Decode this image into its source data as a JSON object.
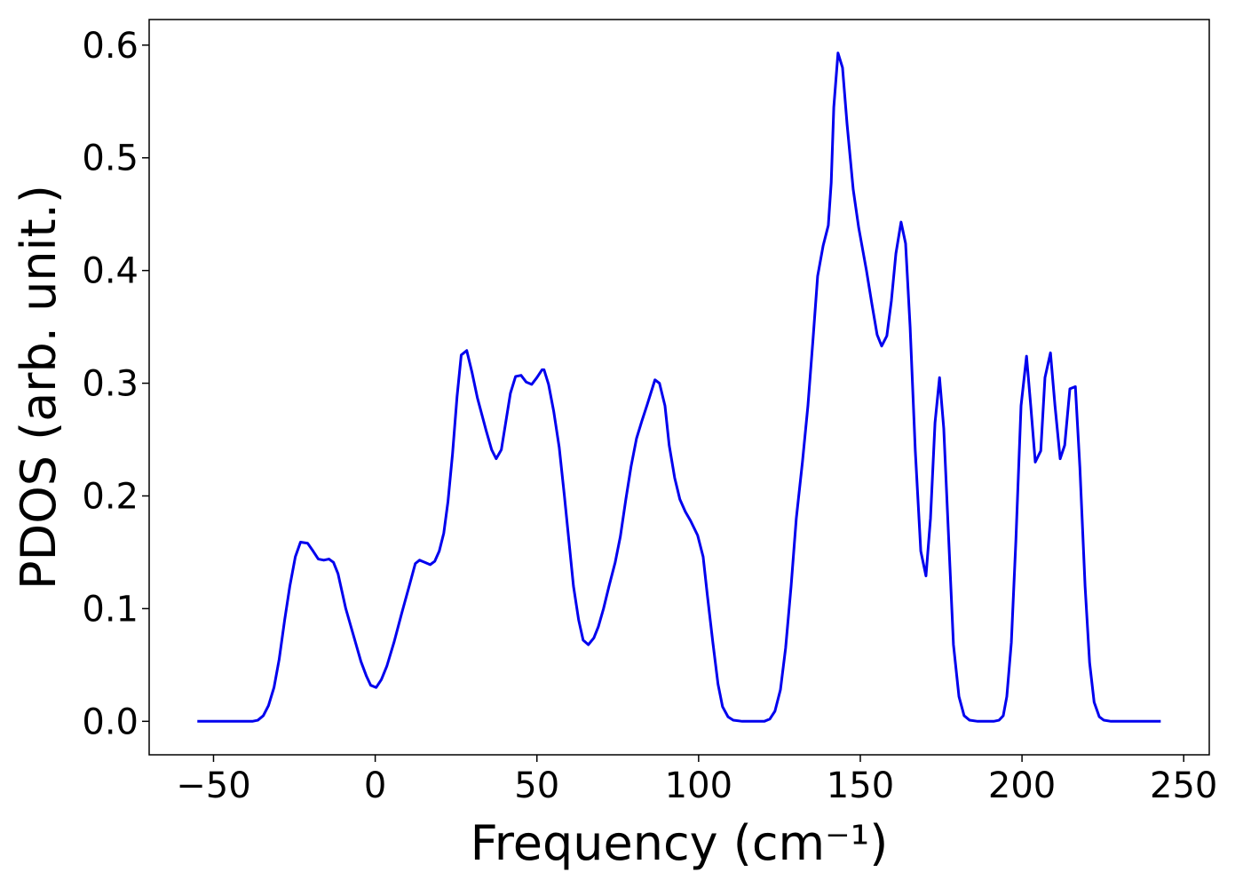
{
  "chart_data": {
    "type": "line",
    "xlabel": "Frequency (cm⁻¹)",
    "ylabel": "PDOS (arb. unit.)",
    "x": [
      -55,
      -38,
      -36.3,
      -34.6,
      -33,
      -31.3,
      -29.7,
      -28,
      -26.4,
      -24.7,
      -23.1,
      -20.9,
      -19.2,
      -17.6,
      -15.9,
      -14.3,
      -12.9,
      -11.5,
      -9.1,
      -6.6,
      -4.4,
      -2.7,
      -1.4,
      0.3,
      1.9,
      3.6,
      5.8,
      8.2,
      10.7,
      12.4,
      13.7,
      15.4,
      17,
      18.4,
      19.8,
      21.2,
      22.5,
      23.9,
      25.3,
      26.6,
      28.3,
      29.9,
      31.6,
      34.3,
      36,
      37.4,
      39,
      40.4,
      41.8,
      43.4,
      45.1,
      46.7,
      48.4,
      50,
      51.6,
      52.2,
      53.6,
      55.2,
      56.9,
      58.5,
      59.9,
      61.3,
      62.9,
      64.3,
      65.9,
      67.6,
      69,
      70.6,
      72.3,
      74.2,
      75.8,
      77.5,
      79.1,
      80.8,
      82.4,
      84.1,
      86.5,
      87.9,
      89.6,
      90.9,
      92.6,
      94.2,
      95.9,
      97.5,
      99.7,
      101.4,
      102.7,
      104.4,
      106,
      107.4,
      109.1,
      110.7,
      113.5,
      120.3,
      122,
      123.6,
      125.3,
      126.9,
      128.6,
      130.2,
      132.1,
      133.8,
      135.4,
      136.8,
      138.5,
      140.1,
      141,
      141.8,
      143.1,
      144.5,
      145.9,
      147.8,
      149.5,
      151.9,
      153.6,
      155.2,
      156.6,
      158.2,
      159.6,
      161,
      162.6,
      164,
      165.4,
      167,
      168.7,
      170.3,
      171.7,
      173.1,
      174.5,
      175.8,
      177.2,
      178.8,
      180.5,
      182.1,
      183.8,
      186.3,
      191.2,
      192.9,
      194.2,
      195.3,
      196.7,
      198.1,
      199.7,
      201.4,
      202.7,
      204.1,
      205.8,
      207.1,
      208.8,
      210.2,
      211.8,
      213.2,
      214.8,
      216.5,
      217.9,
      219.5,
      220.9,
      222.3,
      223.9,
      225.3,
      227.5,
      242.9
    ],
    "series": [
      {
        "color": "#0000ee",
        "values": [
          0,
          0,
          0.001,
          0.005,
          0.014,
          0.03,
          0.055,
          0.09,
          0.12,
          0.146,
          0.159,
          0.158,
          0.151,
          0.144,
          0.143,
          0.144,
          0.141,
          0.131,
          0.1,
          0.075,
          0.053,
          0.04,
          0.032,
          0.03,
          0.037,
          0.049,
          0.07,
          0.096,
          0.122,
          0.14,
          0.143,
          0.141,
          0.139,
          0.142,
          0.151,
          0.167,
          0.195,
          0.237,
          0.288,
          0.325,
          0.329,
          0.31,
          0.287,
          0.258,
          0.241,
          0.233,
          0.241,
          0.266,
          0.291,
          0.306,
          0.307,
          0.301,
          0.299,
          0.305,
          0.312,
          0.312,
          0.299,
          0.275,
          0.243,
          0.2,
          0.16,
          0.12,
          0.09,
          0.072,
          0.068,
          0.074,
          0.084,
          0.1,
          0.12,
          0.141,
          0.164,
          0.197,
          0.226,
          0.251,
          0.266,
          0.281,
          0.303,
          0.3,
          0.28,
          0.245,
          0.216,
          0.197,
          0.186,
          0.178,
          0.165,
          0.146,
          0.112,
          0.07,
          0.033,
          0.013,
          0.004,
          0.001,
          0,
          0,
          0.002,
          0.009,
          0.028,
          0.065,
          0.12,
          0.18,
          0.23,
          0.28,
          0.34,
          0.395,
          0.422,
          0.44,
          0.478,
          0.545,
          0.593,
          0.58,
          0.53,
          0.472,
          0.438,
          0.4,
          0.37,
          0.343,
          0.333,
          0.342,
          0.373,
          0.415,
          0.443,
          0.424,
          0.35,
          0.24,
          0.151,
          0.129,
          0.18,
          0.265,
          0.305,
          0.26,
          0.17,
          0.068,
          0.022,
          0.005,
          0.001,
          0,
          0,
          0.001,
          0.005,
          0.022,
          0.07,
          0.16,
          0.28,
          0.324,
          0.28,
          0.23,
          0.24,
          0.305,
          0.327,
          0.28,
          0.233,
          0.245,
          0.295,
          0.297,
          0.225,
          0.12,
          0.052,
          0.017,
          0.004,
          0.001,
          0,
          0
        ]
      }
    ],
    "xlim": [
      -69.9,
      257.9
    ],
    "ylim": [
      -0.0297,
      0.6227
    ],
    "xticks": [
      {
        "value": -50,
        "label": "−50"
      },
      0,
      50,
      100,
      150,
      200,
      250
    ],
    "yticks": [
      {
        "value": 0,
        "label": "0.0"
      },
      0.1,
      0.2,
      0.3,
      0.4,
      0.5,
      0.6
    ]
  }
}
